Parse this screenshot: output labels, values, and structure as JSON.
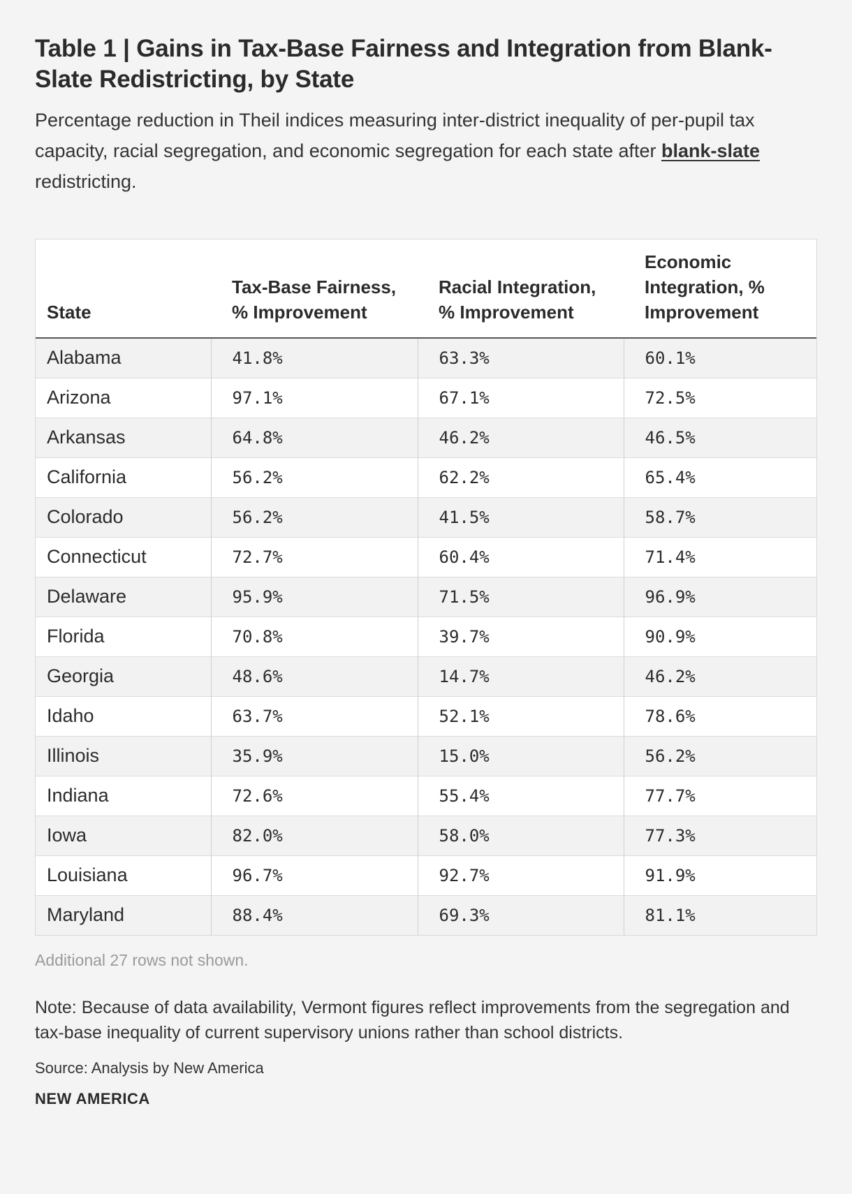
{
  "title": "Table 1 | Gains in Tax-Base Fairness and Integration from Blank-Slate Redistricting, by State",
  "subtitle": {
    "before": "Percentage reduction in Theil indices measuring inter-district inequality of per-pupil tax capacity, racial segregation, and economic segregation for each state after ",
    "link": "blank-slate",
    "after": " redistricting."
  },
  "table": {
    "headers": [
      "State",
      "Tax-Base Fairness, % Improvement",
      "Racial Integration, % Improvement",
      "Economic Integration, % Improvement"
    ],
    "rows": [
      [
        "Alabama",
        "41.8%",
        "63.3%",
        "60.1%"
      ],
      [
        "Arizona",
        "97.1%",
        "67.1%",
        "72.5%"
      ],
      [
        "Arkansas",
        "64.8%",
        "46.2%",
        "46.5%"
      ],
      [
        "California",
        "56.2%",
        "62.2%",
        "65.4%"
      ],
      [
        "Colorado",
        "56.2%",
        "41.5%",
        "58.7%"
      ],
      [
        "Connecticut",
        "72.7%",
        "60.4%",
        "71.4%"
      ],
      [
        "Delaware",
        "95.9%",
        "71.5%",
        "96.9%"
      ],
      [
        "Florida",
        "70.8%",
        "39.7%",
        "90.9%"
      ],
      [
        "Georgia",
        "48.6%",
        "14.7%",
        "46.2%"
      ],
      [
        "Idaho",
        "63.7%",
        "52.1%",
        "78.6%"
      ],
      [
        "Illinois",
        "35.9%",
        "15.0%",
        "56.2%"
      ],
      [
        "Indiana",
        "72.6%",
        "55.4%",
        "77.7%"
      ],
      [
        "Iowa",
        "82.0%",
        "58.0%",
        "77.3%"
      ],
      [
        "Louisiana",
        "96.7%",
        "92.7%",
        "91.9%"
      ],
      [
        "Maryland",
        "88.4%",
        "69.3%",
        "81.1%"
      ]
    ]
  },
  "more_rows": "Additional 27 rows not shown.",
  "note": "Note: Because of data availability, Vermont figures reflect improvements from the segregation and tax-base inequality of current supervisory unions rather than school districts.",
  "source": "Source: Analysis by New America",
  "brand": "NEW AMERICA"
}
